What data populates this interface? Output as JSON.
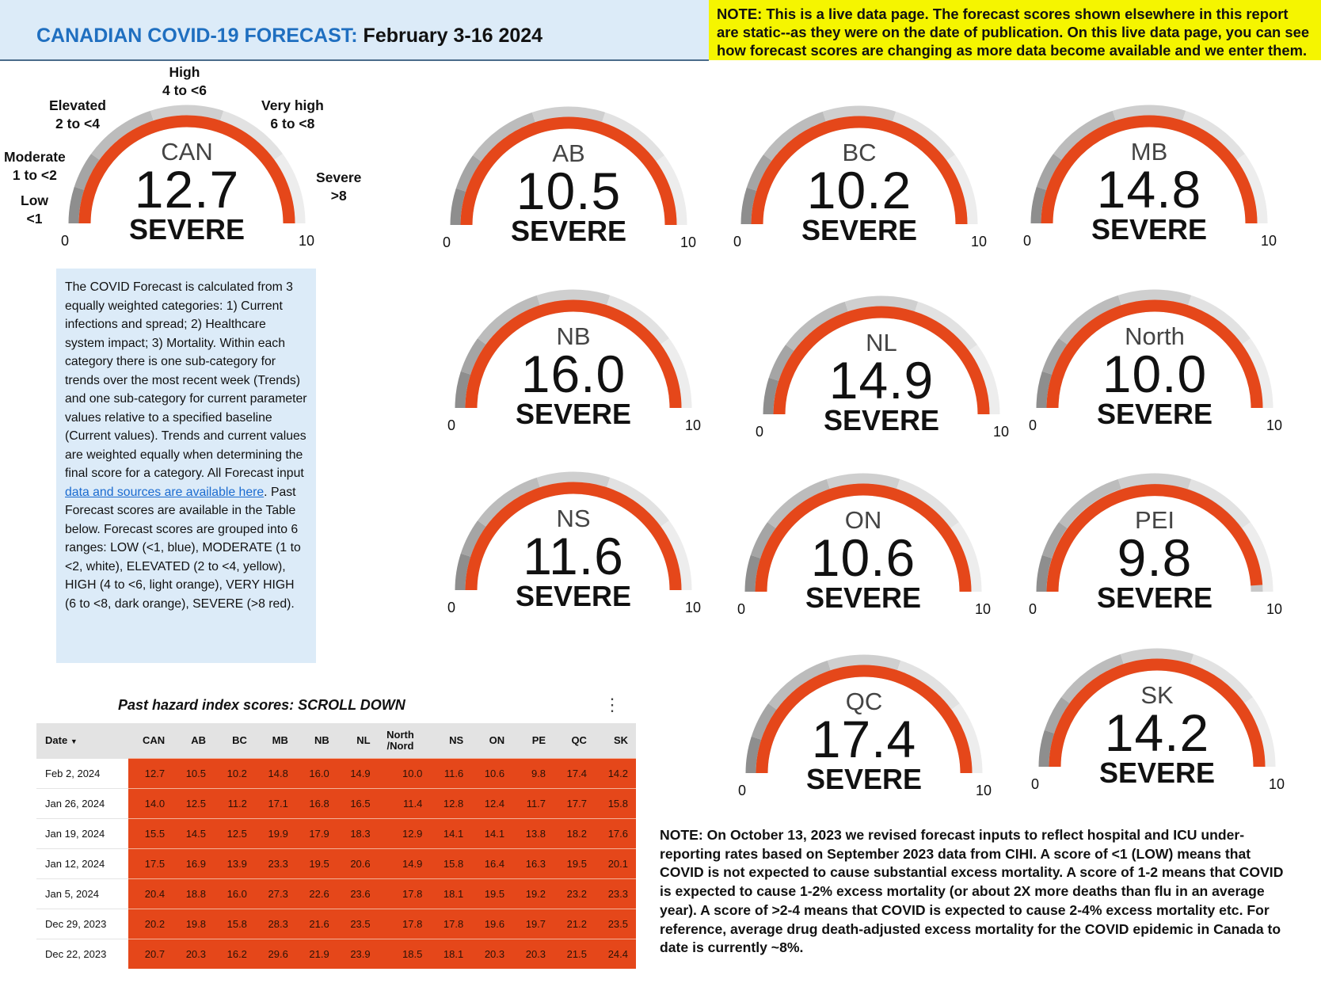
{
  "header": {
    "title_brand": "CANADIAN COVID-19 FORECAST:",
    "title_dates": "February 3-16 2024",
    "note": "NOTE: This is a live data page. The forecast scores shown elsewhere in this report are static--as they were on the date of publication. On this live data page, you can see how forecast scores are changing as more data become available and we enter them."
  },
  "colors": {
    "accent": "#e5471a",
    "gauge_track": "#c8c8c8",
    "info_bg": "#dcebf8",
    "note_bg": "#f5f500",
    "title_blue": "#1f6fc0"
  },
  "range_labels": [
    {
      "name": "Low",
      "range": "<1"
    },
    {
      "name": "Moderate",
      "range": "1 to <2"
    },
    {
      "name": "Elevated",
      "range": "2 to <4"
    },
    {
      "name": "High",
      "range": "4 to <6"
    },
    {
      "name": "Very high",
      "range": "6 to <8"
    },
    {
      "name": "Severe",
      "range": ">8"
    }
  ],
  "gauges": [
    {
      "name": "CAN",
      "value": "12.7",
      "level": "SEVERE",
      "min": "0",
      "max": "10"
    },
    {
      "name": "AB",
      "value": "10.5",
      "level": "SEVERE",
      "min": "0",
      "max": "10"
    },
    {
      "name": "BC",
      "value": "10.2",
      "level": "SEVERE",
      "min": "0",
      "max": "10"
    },
    {
      "name": "MB",
      "value": "14.8",
      "level": "SEVERE",
      "min": "0",
      "max": "10"
    },
    {
      "name": "NB",
      "value": "16.0",
      "level": "SEVERE",
      "min": "0",
      "max": "10"
    },
    {
      "name": "NL",
      "value": "14.9",
      "level": "SEVERE",
      "min": "0",
      "max": "10"
    },
    {
      "name": "North",
      "value": "10.0",
      "level": "SEVERE",
      "min": "0",
      "max": "10"
    },
    {
      "name": "NS",
      "value": "11.6",
      "level": "SEVERE",
      "min": "0",
      "max": "10"
    },
    {
      "name": "ON",
      "value": "10.6",
      "level": "SEVERE",
      "min": "0",
      "max": "10"
    },
    {
      "name": "PEI",
      "value": "9.8",
      "level": "SEVERE",
      "min": "0",
      "max": "10"
    },
    {
      "name": "QC",
      "value": "17.4",
      "level": "SEVERE",
      "min": "0",
      "max": "10"
    },
    {
      "name": "SK",
      "value": "14.2",
      "level": "SEVERE",
      "min": "0",
      "max": "10"
    }
  ],
  "info": {
    "text_before": "The COVID Forecast is calculated from 3 equally weighted categories: 1) Current infections and spread; 2) Healthcare system impact; 3) Mortality. Within each category there is one sub-category for trends over the most recent week (Trends) and one sub-category for current parameter values relative to a specified baseline (Current values). Trends and current values are weighted equally when determining the final score for a category. All Forecast input ",
    "link_text": "data and sources are available here",
    "text_after": ". Past Forecast scores are available in the Table below. Forecast scores are grouped into 6 ranges: LOW (<1, blue), MODERATE (1 to <2, white), ELEVATED (2 to <4, yellow), HIGH (4 to <6, light orange), VERY HIGH (6 to <8, dark orange), SEVERE (>8 red)."
  },
  "table": {
    "title": "Past hazard index scores: SCROLL DOWN",
    "date_header": "Date",
    "sort_icon": "caret-down-icon",
    "columns": [
      "CAN",
      "AB",
      "BC",
      "MB",
      "NB",
      "NL",
      "North /Nord",
      "NS",
      "ON",
      "PE",
      "QC",
      "SK"
    ],
    "rows": [
      {
        "date": "Feb 2, 2024",
        "values": [
          "12.7",
          "10.5",
          "10.2",
          "14.8",
          "16.0",
          "14.9",
          "10.0",
          "11.6",
          "10.6",
          "9.8",
          "17.4",
          "14.2"
        ]
      },
      {
        "date": "Jan 26, 2024",
        "values": [
          "14.0",
          "12.5",
          "11.2",
          "17.1",
          "16.8",
          "16.5",
          "11.4",
          "12.8",
          "12.4",
          "11.7",
          "17.7",
          "15.8"
        ]
      },
      {
        "date": "Jan 19, 2024",
        "values": [
          "15.5",
          "14.5",
          "12.5",
          "19.9",
          "17.9",
          "18.3",
          "12.9",
          "14.1",
          "14.1",
          "13.8",
          "18.2",
          "17.6"
        ]
      },
      {
        "date": "Jan 12, 2024",
        "values": [
          "17.5",
          "16.9",
          "13.9",
          "23.3",
          "19.5",
          "20.6",
          "14.9",
          "15.8",
          "16.4",
          "16.3",
          "19.5",
          "20.1"
        ]
      },
      {
        "date": "Jan 5, 2024",
        "values": [
          "20.4",
          "18.8",
          "16.0",
          "27.3",
          "22.6",
          "23.6",
          "17.8",
          "18.1",
          "19.5",
          "19.2",
          "23.2",
          "23.3"
        ]
      },
      {
        "date": "Dec 29, 2023",
        "values": [
          "20.2",
          "19.8",
          "15.8",
          "28.3",
          "21.6",
          "23.5",
          "17.8",
          "17.8",
          "19.6",
          "19.7",
          "21.2",
          "23.5"
        ]
      },
      {
        "date": "Dec 22, 2023",
        "values": [
          "20.7",
          "20.3",
          "16.2",
          "29.6",
          "21.9",
          "23.9",
          "18.5",
          "18.1",
          "20.3",
          "20.3",
          "21.5",
          "24.4"
        ]
      }
    ]
  },
  "bottom_note": "NOTE: On October 13, 2023 we revised forecast inputs to reflect hospital and ICU under-reporting rates based on September 2023 data from CIHI. A score of <1 (LOW) means that COVID is not expected to cause substantial excess mortality. A score of 1-2 means that COVID is expected to cause 1-2% excess mortality (or about 2X more deaths than flu in an average year). A score of >2-4 means that COVID is expected to cause 2-4% excess mortality etc. For reference, average drug death-adjusted excess mortality for the COVID epidemic in Canada to date is currently ~8%."
}
